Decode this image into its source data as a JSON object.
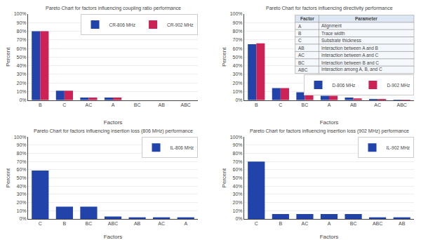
{
  "chart_data": [
    {
      "type": "bar",
      "title": "Pareto Chart for factors influencing coupling ratio performance",
      "xlabel": "Factors",
      "ylabel": "Percent",
      "categories": [
        "B",
        "C",
        "AC",
        "A",
        "BC",
        "AB",
        "ABC"
      ],
      "series": [
        {
          "name": "CR-806 MHz",
          "color": "#2244aa",
          "values": [
            80,
            11,
            3,
            3,
            0,
            0,
            0
          ]
        },
        {
          "name": "CR-902 MHz",
          "color": "#cc2255",
          "values": [
            80,
            11,
            3,
            3,
            0,
            0,
            0
          ]
        }
      ],
      "ylim": [
        0,
        100
      ],
      "yticks": [
        {
          "value": 0,
          "label": "0%"
        },
        {
          "value": 10,
          "label": "10%"
        },
        {
          "value": 20,
          "label": "20%"
        },
        {
          "value": 30,
          "label": "30%"
        },
        {
          "value": 40,
          "label": "40%"
        },
        {
          "value": 50,
          "label": "50%"
        },
        {
          "value": 60,
          "label": "60%"
        },
        {
          "value": 70,
          "label": "70%"
        },
        {
          "value": 80,
          "label": "80%"
        },
        {
          "value": 90,
          "label": "90%"
        },
        {
          "value": 100,
          "label": "100%"
        }
      ],
      "grid": true,
      "legend": "upper right"
    },
    {
      "type": "bar",
      "title": "Pareto Chart for factors influencing directivity performance",
      "xlabel": "Factors",
      "ylabel": "Percent",
      "categories": [
        "B",
        "C",
        "BC",
        "A",
        "AB",
        "AC",
        "ABC"
      ],
      "series": [
        {
          "name": "D-806 MHz",
          "color": "#2244aa",
          "values": [
            65,
            14,
            9,
            5,
            3,
            1,
            0.5
          ]
        },
        {
          "name": "D-902 MHz",
          "color": "#cc2255",
          "values": [
            66,
            14,
            9,
            5,
            2,
            1,
            0.5
          ]
        }
      ],
      "table": {
        "headers": [
          "Factor",
          "Parameter"
        ],
        "rows": [
          [
            "A",
            "Alignment"
          ],
          [
            "B",
            "Trace width"
          ],
          [
            "C",
            "Substrate thickness"
          ],
          [
            "AB",
            "Interaction between A and B"
          ],
          [
            "AC",
            "Interaction between A and C"
          ],
          [
            "BC",
            "Interaction between B and C"
          ],
          [
            "ABC",
            "Interaction among A, B, and C"
          ]
        ]
      },
      "ylim": [
        0,
        100
      ],
      "yticks": [
        {
          "value": 0,
          "label": "0%"
        },
        {
          "value": 10,
          "label": "10%"
        },
        {
          "value": 20,
          "label": "20%"
        },
        {
          "value": 30,
          "label": "30%"
        },
        {
          "value": 40,
          "label": "40%"
        },
        {
          "value": 50,
          "label": "50%"
        },
        {
          "value": 60,
          "label": "60%"
        },
        {
          "value": 70,
          "label": "70%"
        },
        {
          "value": 80,
          "label": "80%"
        },
        {
          "value": 90,
          "label": "90%"
        },
        {
          "value": 100,
          "label": "100%"
        }
      ],
      "grid": true,
      "legend": "right"
    },
    {
      "type": "bar",
      "title": "Pareto Chart for factors influencing insertion loss (806 MHz) performance",
      "xlabel": "Factors",
      "ylabel": "Percent",
      "categories": [
        "C",
        "B",
        "BC",
        "ABC",
        "AB",
        "AC",
        "A"
      ],
      "series": [
        {
          "name": "IL-806 MHz",
          "color": "#2244aa",
          "values": [
            59,
            15,
            15,
            3,
            2,
            2,
            2
          ]
        }
      ],
      "ylim": [
        0,
        100
      ],
      "yticks": [
        {
          "value": 0,
          "label": "0%"
        },
        {
          "value": 10,
          "label": "10%"
        },
        {
          "value": 20,
          "label": "20%"
        },
        {
          "value": 30,
          "label": "30%"
        },
        {
          "value": 40,
          "label": "40%"
        },
        {
          "value": 50,
          "label": "50%"
        },
        {
          "value": 60,
          "label": "60%"
        },
        {
          "value": 70,
          "label": "70%"
        },
        {
          "value": 80,
          "label": "80%"
        },
        {
          "value": 90,
          "label": "90%"
        },
        {
          "value": 100,
          "label": "100%"
        }
      ],
      "grid": true,
      "legend": "upper right"
    },
    {
      "type": "bar",
      "title": "Pareto Chart for factors influencing insertion loss (902 MHz) performance",
      "xlabel": "Factors",
      "ylabel": "Percent",
      "categories": [
        "C",
        "B",
        "AC",
        "A",
        "BC",
        "ABC",
        "AB"
      ],
      "series": [
        {
          "name": "IL-902 MHz",
          "color": "#2244aa",
          "values": [
            70,
            6,
            6,
            6,
            6,
            2,
            2
          ]
        }
      ],
      "ylim": [
        0,
        100
      ],
      "yticks": [
        {
          "value": 0,
          "label": "0%"
        },
        {
          "value": 10,
          "label": "10%"
        },
        {
          "value": 20,
          "label": "20%"
        },
        {
          "value": 30,
          "label": "30%"
        },
        {
          "value": 40,
          "label": "40%"
        },
        {
          "value": 50,
          "label": "50%"
        },
        {
          "value": 60,
          "label": "60%"
        },
        {
          "value": 70,
          "label": "70%"
        },
        {
          "value": 80,
          "label": "80%"
        },
        {
          "value": 90,
          "label": "90%"
        },
        {
          "value": 100,
          "label": "100%"
        }
      ],
      "grid": true,
      "legend": "upper right"
    }
  ]
}
